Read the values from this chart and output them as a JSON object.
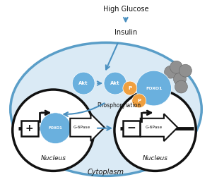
{
  "bg_color": "#ffffff",
  "blue": "#6ab0de",
  "blue_light": "#d6eaf8",
  "blue_cell_edge": "#5a9ec8",
  "orange": "#f0a040",
  "gray": "#909090",
  "black": "#111111",
  "arr_blue": "#4a90c0",
  "high_glucose": "High Glucose",
  "insulin": "Insulin",
  "phosphorylation": "Phosphorylation",
  "nucleus_label": "Nucleus",
  "cytoplasm_label": "Cytoplasm",
  "g6pase": "G-6Pase",
  "foxo1": "FOXO1",
  "akt": "Akt",
  "p": "P"
}
